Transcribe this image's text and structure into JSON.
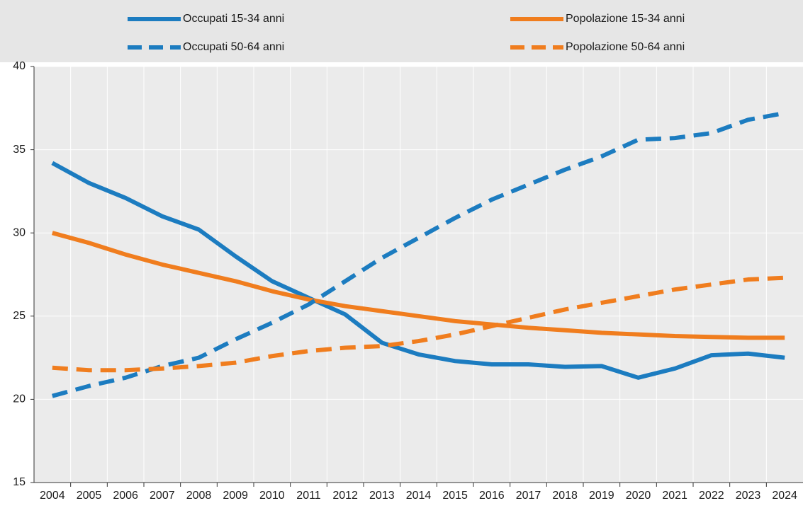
{
  "chart_data": {
    "type": "line",
    "categories": [
      "2004",
      "2005",
      "2006",
      "2007",
      "2008",
      "2009",
      "2010",
      "2011",
      "2012",
      "2013",
      "2014",
      "2015",
      "2016",
      "2017",
      "2018",
      "2019",
      "2020",
      "2021",
      "2022",
      "2023",
      "2024"
    ],
    "series": [
      {
        "name": "Occupati 15-34 anni",
        "color": "#1c7cc0",
        "line_style": "solid",
        "values": [
          34.2,
          33.0,
          32.1,
          31.0,
          30.2,
          28.6,
          27.1,
          26.1,
          25.1,
          23.4,
          22.7,
          22.3,
          22.1,
          22.1,
          21.95,
          22.0,
          21.3,
          21.85,
          22.65,
          22.75,
          22.5
        ]
      },
      {
        "name": "Popolazione 15-34 anni",
        "color": "#f07d1e",
        "line_style": "solid",
        "values": [
          30.0,
          29.4,
          28.7,
          28.1,
          27.6,
          27.1,
          26.5,
          26.0,
          25.6,
          25.3,
          25.0,
          24.7,
          24.5,
          24.3,
          24.15,
          24.0,
          23.9,
          23.8,
          23.75,
          23.7,
          23.7
        ]
      },
      {
        "name": "Occupati 50-64 anni",
        "color": "#1c7cc0",
        "line_style": "dashed",
        "values": [
          20.2,
          20.8,
          21.3,
          22.0,
          22.5,
          23.6,
          24.6,
          25.7,
          27.1,
          28.5,
          29.7,
          30.9,
          32.0,
          32.9,
          33.8,
          34.6,
          35.6,
          35.7,
          36.0,
          36.8,
          37.2
        ]
      },
      {
        "name": "Popolazione 50-64 anni",
        "color": "#f07d1e",
        "line_style": "dashed",
        "values": [
          21.9,
          21.75,
          21.75,
          21.85,
          22.0,
          22.2,
          22.6,
          22.9,
          23.1,
          23.2,
          23.5,
          23.9,
          24.4,
          24.9,
          25.4,
          25.8,
          26.2,
          26.6,
          26.9,
          27.2,
          27.3
        ]
      }
    ],
    "ylim": [
      15,
      40
    ],
    "yticks": [
      15,
      20,
      25,
      30,
      35,
      40
    ],
    "grid": true
  }
}
